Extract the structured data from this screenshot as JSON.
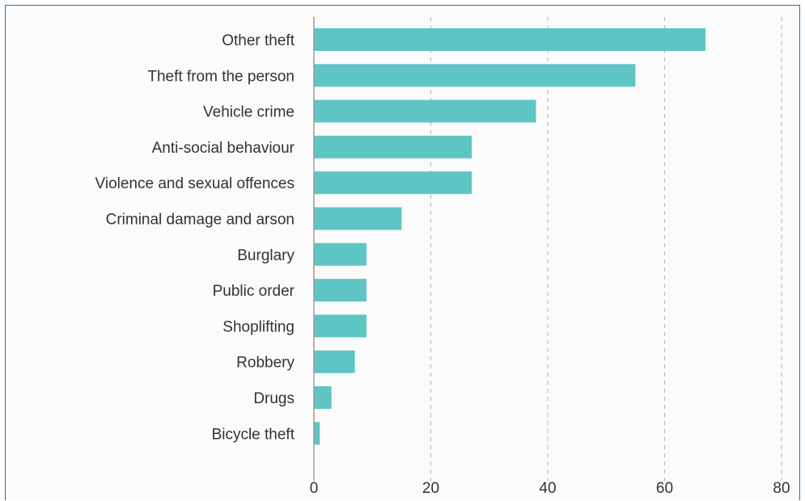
{
  "chart_data": {
    "type": "bar",
    "orientation": "horizontal",
    "categories": [
      "Other theft",
      "Theft from the person",
      "Vehicle crime",
      "Anti-social behaviour",
      "Violence and sexual offences",
      "Criminal damage and arson",
      "Burglary",
      "Public order",
      "Shoplifting",
      "Robbery",
      "Drugs",
      "Bicycle theft"
    ],
    "values": [
      67,
      55,
      38,
      27,
      27,
      15,
      9,
      9,
      9,
      7,
      3,
      1
    ],
    "title": "",
    "xlabel": "",
    "ylabel": "",
    "xlim": [
      0,
      80
    ],
    "x_ticks": [
      "0",
      "20",
      "40",
      "60",
      "80"
    ],
    "grid": "vertical dashed",
    "legend": "none",
    "bar_color": "#5ec5c5",
    "frame_color": "#1f6fb2"
  }
}
